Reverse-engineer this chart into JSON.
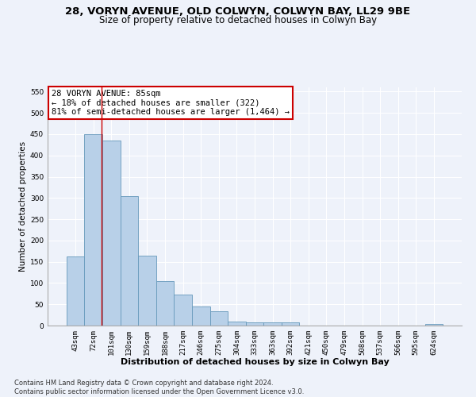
{
  "title": "28, VORYN AVENUE, OLD COLWYN, COLWYN BAY, LL29 9BE",
  "subtitle": "Size of property relative to detached houses in Colwyn Bay",
  "xlabel": "Distribution of detached houses by size in Colwyn Bay",
  "ylabel": "Number of detached properties",
  "categories": [
    "43sqm",
    "72sqm",
    "101sqm",
    "130sqm",
    "159sqm",
    "188sqm",
    "217sqm",
    "246sqm",
    "275sqm",
    "304sqm",
    "333sqm",
    "363sqm",
    "392sqm",
    "421sqm",
    "450sqm",
    "479sqm",
    "508sqm",
    "537sqm",
    "566sqm",
    "595sqm",
    "624sqm"
  ],
  "values": [
    163,
    450,
    435,
    305,
    165,
    105,
    73,
    44,
    34,
    9,
    7,
    7,
    7,
    0,
    0,
    0,
    0,
    0,
    0,
    0,
    3
  ],
  "bar_color": "#b8d0e8",
  "bar_edge_color": "#6699bb",
  "vline_x_index": 1.45,
  "vline_color": "#cc0000",
  "annotation_text": "28 VORYN AVENUE: 85sqm\n← 18% of detached houses are smaller (322)\n81% of semi-detached houses are larger (1,464) →",
  "annotation_box_color": "#ffffff",
  "annotation_box_edge_color": "#cc0000",
  "ylim": [
    0,
    560
  ],
  "yticks": [
    0,
    50,
    100,
    150,
    200,
    250,
    300,
    350,
    400,
    450,
    500,
    550
  ],
  "background_color": "#eef2fa",
  "grid_color": "#ffffff",
  "footer": "Contains HM Land Registry data © Crown copyright and database right 2024.\nContains public sector information licensed under the Open Government Licence v3.0.",
  "title_fontsize": 9.5,
  "subtitle_fontsize": 8.5,
  "xlabel_fontsize": 8,
  "ylabel_fontsize": 7.5,
  "tick_fontsize": 6.5,
  "annotation_fontsize": 7.5,
  "footer_fontsize": 6.0
}
